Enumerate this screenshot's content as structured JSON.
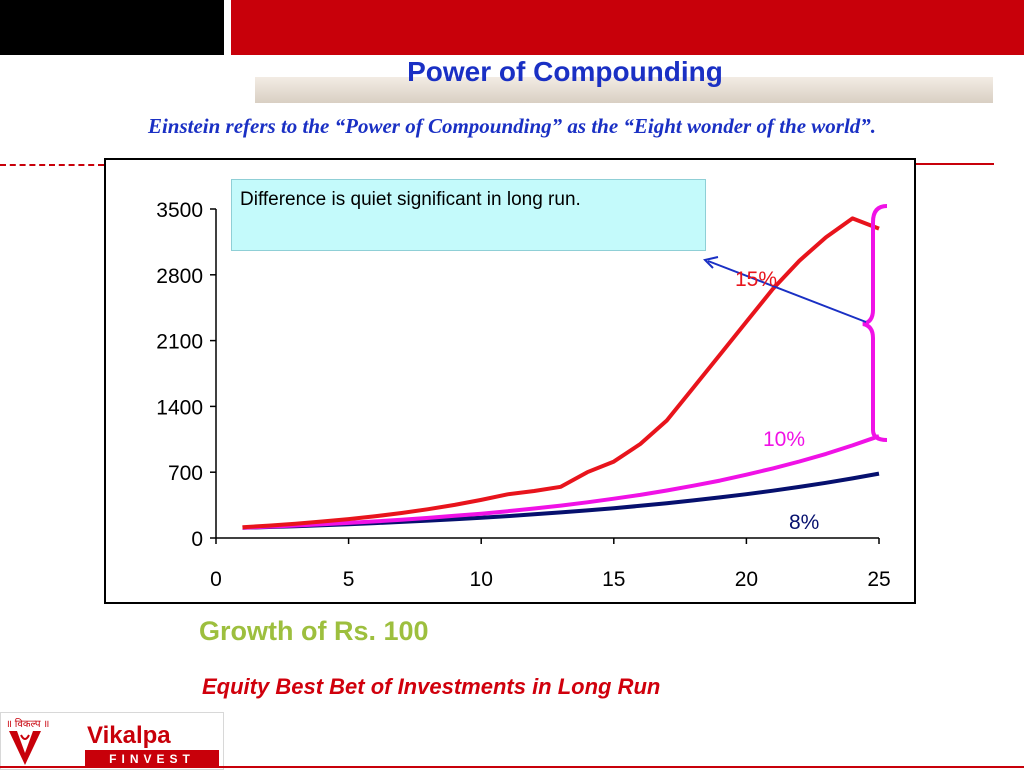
{
  "slide": {
    "title": "Power of Compounding",
    "subtitle": "Einstein refers to the “Power of Compounding” as the “Eight wonder of the world”.",
    "callout": "Difference is quiet significant in long run.",
    "growth_caption": "Growth of Rs. 100",
    "equity_caption": "Equity Best Bet of Investments in Long Run",
    "logo": {
      "hindi_text": "॥ विकल्प ॥",
      "name": "Vikalpa",
      "tagline": "FINVEST"
    },
    "colors": {
      "title": "#1a30c4",
      "red": "#c8000a",
      "green": "#9dbf3e",
      "callout_bg": "#c4fafb"
    }
  },
  "chart_data": {
    "type": "line",
    "x": [
      1,
      2,
      3,
      4,
      5,
      6,
      7,
      8,
      9,
      10,
      11,
      12,
      13,
      14,
      15,
      16,
      17,
      18,
      19,
      20,
      21,
      22,
      23,
      24,
      25
    ],
    "xticks": [
      0,
      5,
      10,
      15,
      20,
      25
    ],
    "yticks": [
      0,
      700,
      1400,
      2100,
      2800,
      3500
    ],
    "xlim": [
      0,
      25
    ],
    "ylim": [
      0,
      3500
    ],
    "series": [
      {
        "name": "15%",
        "color": "#e8141c",
        "values": [
          115,
          132,
          152,
          175,
          201,
          231,
          266,
          306,
          352,
          405,
          465,
          500,
          545,
          700,
          813,
          1000,
          1250,
          1600,
          1950,
          2300,
          2650,
          2950,
          3200,
          3400,
          3292
        ]
      },
      {
        "name": "10%",
        "color": "#f012e6",
        "values": [
          110,
          121,
          133,
          146,
          161,
          177,
          195,
          214,
          236,
          259,
          285,
          314,
          345,
          380,
          418,
          459,
          505,
          556,
          611,
          673,
          740,
          814,
          895,
          985,
          1083
        ]
      },
      {
        "name": "8%",
        "color": "#06106e",
        "values": [
          108,
          117,
          126,
          136,
          147,
          159,
          171,
          185,
          200,
          216,
          233,
          252,
          272,
          294,
          317,
          343,
          370,
          400,
          432,
          466,
          503,
          544,
          587,
          634,
          685
        ]
      }
    ],
    "labels": [
      {
        "text": "15%",
        "color": "#e8141c"
      },
      {
        "text": "10%",
        "color": "#f012e6"
      },
      {
        "text": "8%",
        "color": "#06106e"
      }
    ]
  }
}
